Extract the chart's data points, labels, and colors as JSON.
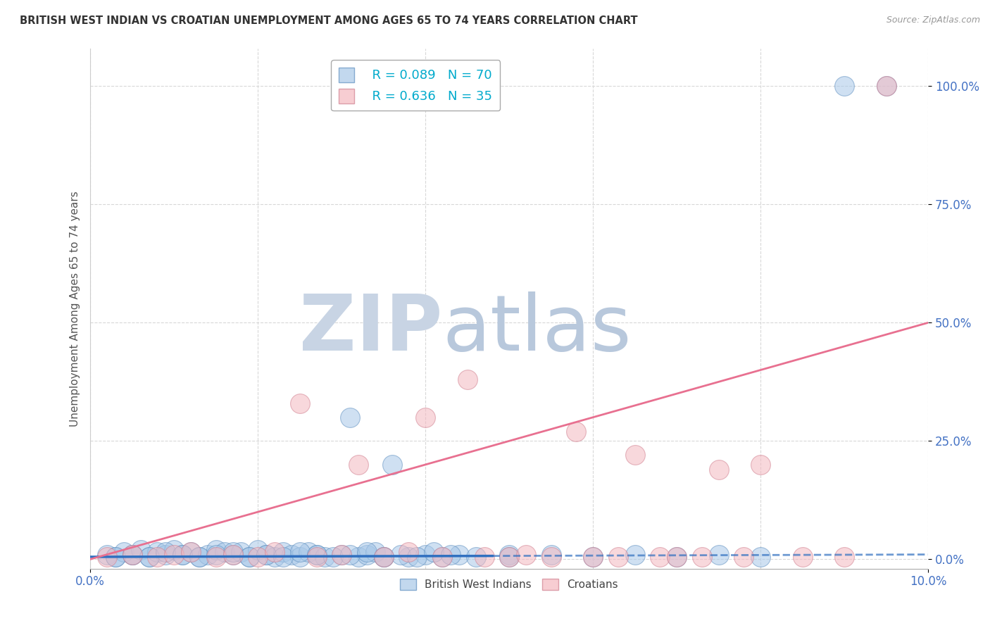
{
  "title": "BRITISH WEST INDIAN VS CROATIAN UNEMPLOYMENT AMONG AGES 65 TO 74 YEARS CORRELATION CHART",
  "source": "Source: ZipAtlas.com",
  "ylabel": "Unemployment Among Ages 65 to 74 years",
  "xlim": [
    0.0,
    0.1
  ],
  "ylim": [
    -0.02,
    1.08
  ],
  "xticks": [
    0.0,
    0.1
  ],
  "xtick_labels": [
    "0.0%",
    "10.0%"
  ],
  "yticks": [
    0.0,
    0.25,
    0.5,
    0.75,
    1.0
  ],
  "ytick_labels": [
    "0.0%",
    "25.0%",
    "50.0%",
    "75.0%",
    "100.0%"
  ],
  "blue_R": "R = 0.089",
  "blue_N": "N = 70",
  "pink_R": "R = 0.636",
  "pink_N": "N = 35",
  "blue_color": "#a8c8e8",
  "pink_color": "#f4b8c0",
  "blue_edge_color": "#6090c0",
  "pink_edge_color": "#d08090",
  "blue_line_color": "#3070c0",
  "pink_line_color": "#e87090",
  "grid_color": "#d8d8d8",
  "title_color": "#333333",
  "axis_label_color": "#555555",
  "tick_color": "#4472c4",
  "watermark_zip_color": "#c8d4e4",
  "watermark_atlas_color": "#b8c8dc",
  "legend_label_blue": "British West Indians",
  "legend_label_pink": "Croatians",
  "blue_scatter_x": [
    0.002,
    0.003,
    0.004,
    0.005,
    0.006,
    0.007,
    0.008,
    0.009,
    0.01,
    0.011,
    0.012,
    0.013,
    0.014,
    0.015,
    0.016,
    0.017,
    0.018,
    0.019,
    0.02,
    0.021,
    0.022,
    0.023,
    0.024,
    0.025,
    0.026,
    0.027,
    0.028,
    0.03,
    0.031,
    0.032,
    0.033,
    0.034,
    0.035,
    0.036,
    0.038,
    0.04,
    0.042,
    0.044,
    0.046,
    0.05,
    0.003,
    0.005,
    0.007,
    0.009,
    0.011,
    0.013,
    0.015,
    0.017,
    0.019,
    0.021,
    0.023,
    0.025,
    0.027,
    0.029,
    0.031,
    0.033,
    0.035,
    0.037,
    0.039,
    0.041,
    0.043,
    0.05,
    0.055,
    0.06,
    0.065,
    0.07,
    0.075,
    0.08,
    0.09,
    0.095
  ],
  "blue_scatter_y": [
    0.01,
    0.005,
    0.015,
    0.01,
    0.02,
    0.005,
    0.015,
    0.01,
    0.02,
    0.01,
    0.015,
    0.005,
    0.01,
    0.02,
    0.015,
    0.01,
    0.015,
    0.005,
    0.02,
    0.01,
    0.005,
    0.015,
    0.01,
    0.005,
    0.015,
    0.01,
    0.005,
    0.01,
    0.3,
    0.005,
    0.01,
    0.015,
    0.005,
    0.2,
    0.005,
    0.01,
    0.005,
    0.01,
    0.005,
    0.01,
    0.005,
    0.01,
    0.005,
    0.015,
    0.01,
    0.005,
    0.01,
    0.015,
    0.005,
    0.01,
    0.005,
    0.015,
    0.01,
    0.005,
    0.01,
    0.015,
    0.005,
    0.01,
    0.005,
    0.015,
    0.01,
    0.005,
    0.01,
    0.005,
    0.01,
    0.005,
    0.01,
    0.005,
    1.0,
    1.0
  ],
  "pink_scatter_x": [
    0.002,
    0.005,
    0.008,
    0.01,
    0.012,
    0.015,
    0.017,
    0.02,
    0.022,
    0.025,
    0.027,
    0.03,
    0.032,
    0.035,
    0.038,
    0.04,
    0.042,
    0.045,
    0.047,
    0.05,
    0.052,
    0.055,
    0.058,
    0.06,
    0.063,
    0.065,
    0.068,
    0.07,
    0.073,
    0.075,
    0.078,
    0.08,
    0.085,
    0.09,
    0.095
  ],
  "pink_scatter_y": [
    0.005,
    0.01,
    0.005,
    0.01,
    0.015,
    0.005,
    0.01,
    0.005,
    0.015,
    0.33,
    0.005,
    0.01,
    0.2,
    0.005,
    0.015,
    0.3,
    0.005,
    0.38,
    0.005,
    0.005,
    0.01,
    0.005,
    0.27,
    0.005,
    0.005,
    0.22,
    0.005,
    0.005,
    0.005,
    0.19,
    0.005,
    0.2,
    0.005,
    0.005,
    1.0
  ],
  "blue_line_x": [
    0.0,
    0.048,
    0.1
  ],
  "blue_line_y": [
    0.005,
    0.007,
    0.01
  ],
  "blue_line_style": [
    "-",
    "--"
  ],
  "pink_line_x": [
    0.0,
    0.1
  ],
  "pink_line_y": [
    0.0,
    0.5
  ]
}
